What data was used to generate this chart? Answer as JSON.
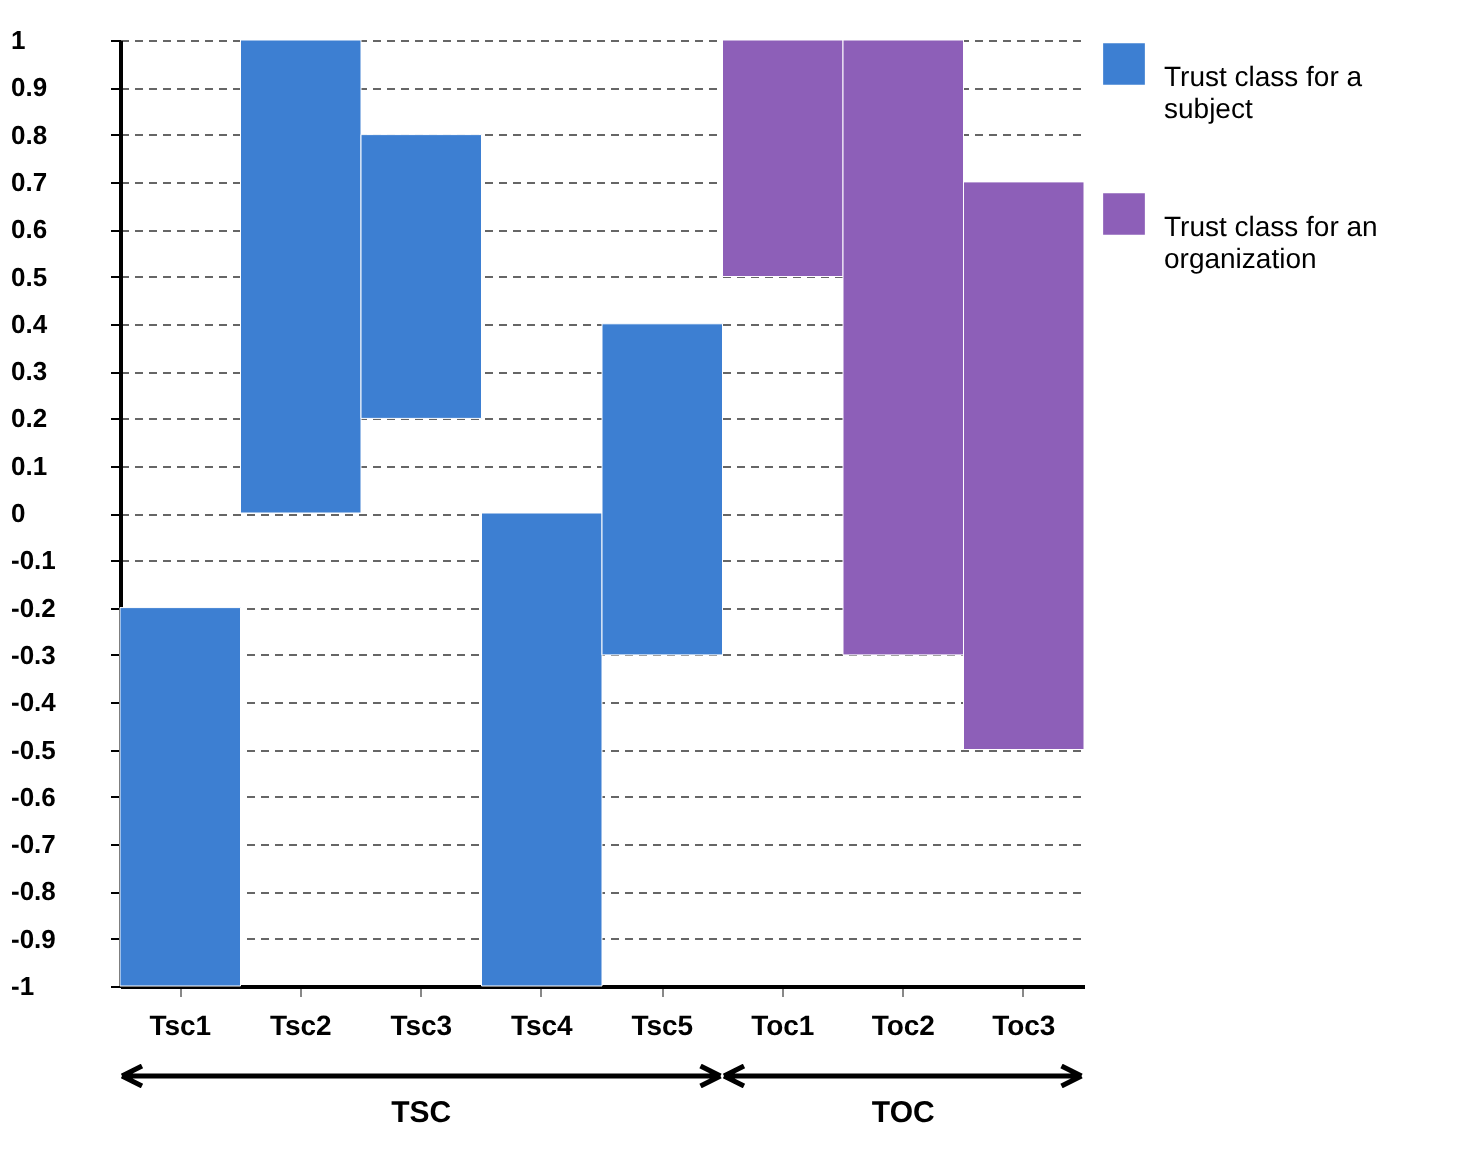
{
  "chart_data": {
    "type": "bar",
    "categories": [
      "Tsc1",
      "Tsc2",
      "Tsc3",
      "Tsc4",
      "Tsc5",
      "Toc1",
      "Toc2",
      "Toc3"
    ],
    "series": [
      {
        "name": "Trust class for a subject",
        "color": "#3d7fd2",
        "base": [
          -1,
          0,
          0.2,
          -1,
          -0.3,
          null,
          null,
          null
        ],
        "values": [
          0.8,
          1,
          0.6,
          1,
          0.7,
          null,
          null,
          null
        ]
      },
      {
        "name": "Trust class for an organization",
        "color": "#8d5fb8",
        "base": [
          null,
          null,
          null,
          null,
          null,
          0.5,
          -0.3,
          -0.5
        ],
        "values": [
          null,
          null,
          null,
          null,
          null,
          0.5,
          1.3,
          1.2
        ]
      }
    ],
    "ylim": [
      -1,
      1
    ],
    "yticks": [
      -1,
      -0.9,
      -0.8,
      -0.7,
      -0.6,
      -0.5,
      -0.4,
      -0.3,
      -0.2,
      -0.1,
      0,
      0.1,
      0.2,
      0.3,
      0.4,
      0.5,
      0.6,
      0.7,
      0.8,
      0.9,
      1
    ],
    "grid": "y",
    "legend": "right",
    "annotations": [
      "TSC",
      "TOC"
    ]
  }
}
